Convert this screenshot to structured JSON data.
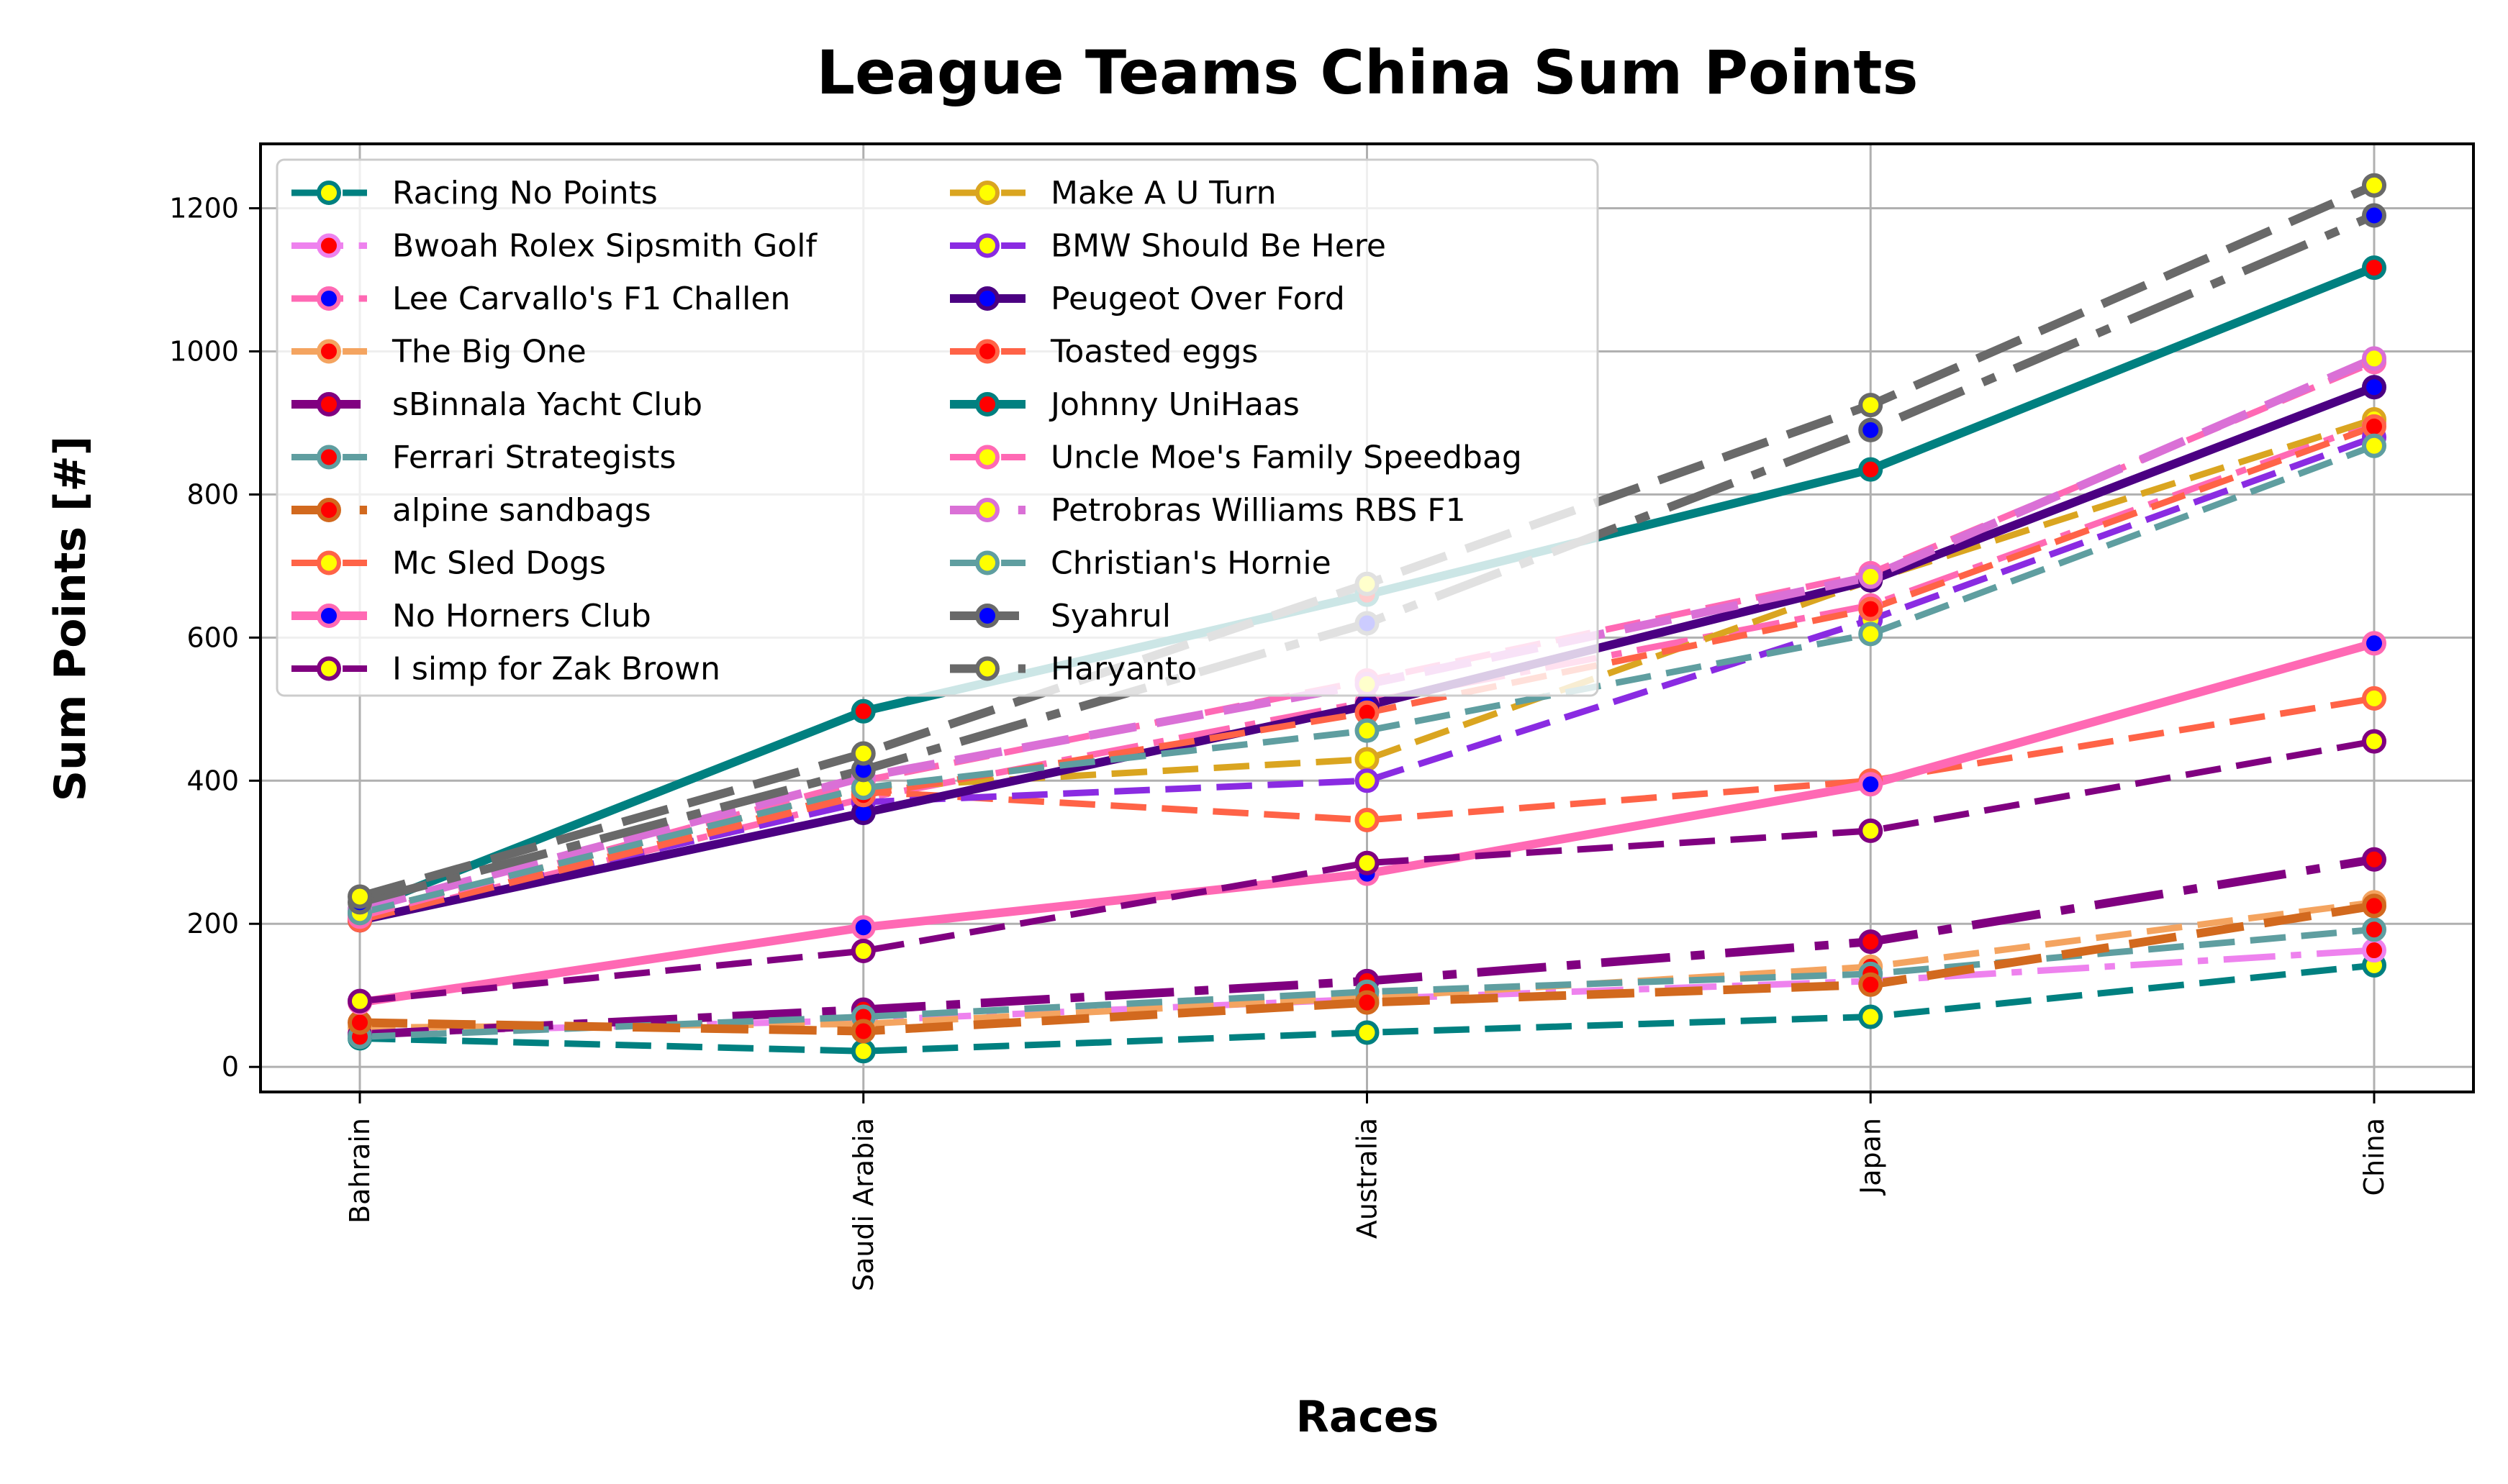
{
  "chart_data": {
    "type": "line",
    "title": "League Teams China Sum Points",
    "xlabel": "Races",
    "ylabel": "Sum Points [#]",
    "categories": [
      "Bahrain",
      "Saudi Arabia",
      "Australia",
      "Japan",
      "China"
    ],
    "ylim": [
      -35,
      1290
    ],
    "yticks": [
      0,
      200,
      400,
      600,
      800,
      1000,
      1200
    ],
    "grid": true,
    "legend_position": "upper-left",
    "series": [
      {
        "name": "Racing No Points",
        "values": [
          40,
          22,
          48,
          70,
          142
        ],
        "color": "#008080",
        "dash": "dashed",
        "width": 3,
        "marker_face": "#ffff00"
      },
      {
        "name": "Bwoah Rolex Sipsmith Golf",
        "values": [
          48,
          65,
          95,
          120,
          163
        ],
        "color": "#ee82ee",
        "dash": "dashdot",
        "width": 3,
        "marker_face": "#ff0000"
      },
      {
        "name": "Lee Carvallo's F1 Challen",
        "values": [
          205,
          375,
          510,
          645,
          900
        ],
        "color": "#ff69b4",
        "dash": "dashdot",
        "width": 3,
        "marker_face": "#0000ff"
      },
      {
        "name": "The Big One",
        "values": [
          55,
          60,
          97,
          140,
          230
        ],
        "color": "#f4a460",
        "dash": "dashed",
        "width": 3,
        "marker_face": "#ff0000"
      },
      {
        "name": "sBinnala Yacht Club",
        "values": [
          45,
          80,
          120,
          175,
          290
        ],
        "color": "#800080",
        "dash": "dashdot",
        "width": 4,
        "marker_face": "#ff0000"
      },
      {
        "name": "Ferrari Strategists",
        "values": [
          42,
          70,
          105,
          130,
          192
        ],
        "color": "#5f9ea0",
        "dash": "dashed",
        "width": 3,
        "marker_face": "#ff0000"
      },
      {
        "name": "alpine sandbags",
        "values": [
          62,
          50,
          90,
          115,
          225
        ],
        "color": "#d2691e",
        "dash": "dashed",
        "width": 4,
        "marker_face": "#ff0000"
      },
      {
        "name": "Mc Sled Dogs",
        "values": [
          205,
          385,
          345,
          400,
          515
        ],
        "color": "#ff6347",
        "dash": "dashed",
        "width": 3,
        "marker_face": "#ffff00"
      },
      {
        "name": "No Horners Club",
        "values": [
          90,
          195,
          270,
          395,
          592
        ],
        "color": "#ff69b4",
        "dash": "solid",
        "width": 4,
        "marker_face": "#0000ff"
      },
      {
        "name": "I simp for Zak Brown",
        "values": [
          92,
          162,
          285,
          330,
          455
        ],
        "color": "#800080",
        "dash": "dashed",
        "width": 3,
        "marker_face": "#ffff00"
      },
      {
        "name": "Make A U Turn",
        "values": [
          215,
          390,
          430,
          680,
          905
        ],
        "color": "#daa520",
        "dash": "dashed",
        "width": 3,
        "marker_face": "#ffff00"
      },
      {
        "name": "BMW Should Be Here",
        "values": [
          210,
          370,
          400,
          625,
          880
        ],
        "color": "#8a2be2",
        "dash": "dashed",
        "width": 3,
        "marker_face": "#ffff00"
      },
      {
        "name": "Peugeot Over Ford",
        "values": [
          205,
          355,
          505,
          680,
          950
        ],
        "color": "#4b0082",
        "dash": "solid",
        "width": 4,
        "marker_face": "#0000ff"
      },
      {
        "name": "Toasted eggs",
        "values": [
          205,
          380,
          495,
          640,
          895
        ],
        "color": "#ff6347",
        "dash": "dashed",
        "width": 3,
        "marker_face": "#ff0000"
      },
      {
        "name": "Johnny UniHaas",
        "values": [
          220,
          497,
          660,
          835,
          1117
        ],
        "color": "#008080",
        "dash": "solid",
        "width": 4,
        "marker_face": "#ff0000"
      },
      {
        "name": "Uncle Moe's Family Speedbag",
        "values": [
          210,
          400,
          540,
          690,
          985
        ],
        "color": "#ff69b4",
        "dash": "dashed",
        "width": 3,
        "marker_face": "#ffff00"
      },
      {
        "name": "Petrobras Williams RBS F1",
        "values": [
          220,
          405,
          535,
          685,
          990
        ],
        "color": "#da70d6",
        "dash": "dashed",
        "width": 4,
        "marker_face": "#ffff00"
      },
      {
        "name": "Christian's Hornie",
        "values": [
          215,
          390,
          470,
          605,
          868
        ],
        "color": "#5f9ea0",
        "dash": "dashed",
        "width": 3,
        "marker_face": "#ffff00"
      },
      {
        "name": "Syahrul",
        "values": [
          230,
          415,
          620,
          890,
          1190
        ],
        "color": "#696969",
        "dash": "dashdot",
        "width": 4,
        "marker_face": "#0000ff"
      },
      {
        "name": "Haryanto",
        "values": [
          238,
          438,
          675,
          925,
          1232
        ],
        "color": "#696969",
        "dash": "dashed",
        "width": 4,
        "marker_face": "#ffff00"
      }
    ]
  }
}
